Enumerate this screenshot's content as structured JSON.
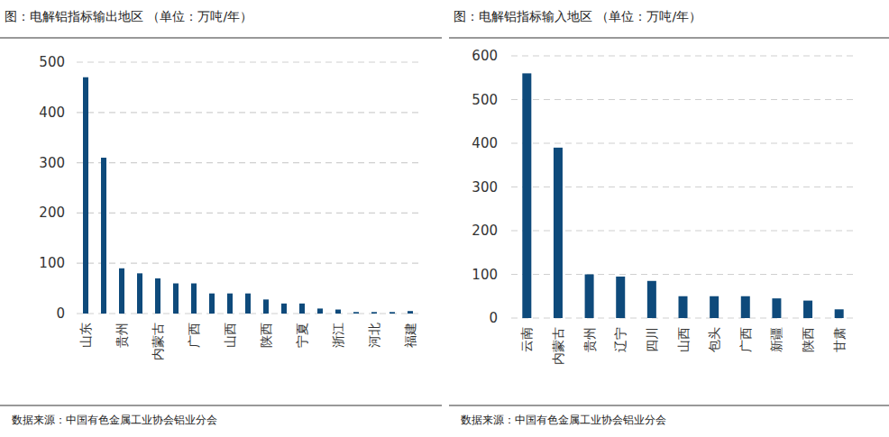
{
  "chart_data": [
    {
      "type": "bar",
      "title": "图：电解铝指标输出地区 （单位：万吨/年）",
      "categories": [
        "山东",
        null,
        "贵州",
        null,
        "内蒙古",
        null,
        "广西",
        null,
        "山西",
        null,
        "陕西",
        null,
        "宁夏",
        null,
        "浙江",
        null,
        "河北",
        null,
        "福建"
      ],
      "values": [
        470,
        310,
        90,
        80,
        70,
        60,
        60,
        40,
        40,
        40,
        28,
        20,
        20,
        10,
        8,
        3,
        3,
        3,
        5
      ],
      "color": "#0e4a7b",
      "ylim": [
        0,
        500
      ],
      "yticks": [
        0,
        100,
        200,
        300,
        400,
        500
      ],
      "grid": true,
      "source": "数据来源：中国有色金属工业协会铝业分会"
    },
    {
      "type": "bar",
      "title": "图：电解铝指标输入地区 （单位：万吨/年）",
      "categories": [
        "云南",
        "内蒙古",
        "贵州",
        "辽宁",
        "四川",
        "山西",
        "包头",
        "广西",
        "新疆",
        "陕西",
        "甘肃"
      ],
      "values": [
        560,
        390,
        100,
        95,
        85,
        50,
        50,
        50,
        45,
        40,
        20
      ],
      "color": "#0e4a7b",
      "ylim": [
        0,
        600
      ],
      "yticks": [
        0,
        100,
        200,
        300,
        400,
        500,
        600
      ],
      "grid": true,
      "source": "数据来源：中国有色金属工业协会铝业分会"
    }
  ]
}
